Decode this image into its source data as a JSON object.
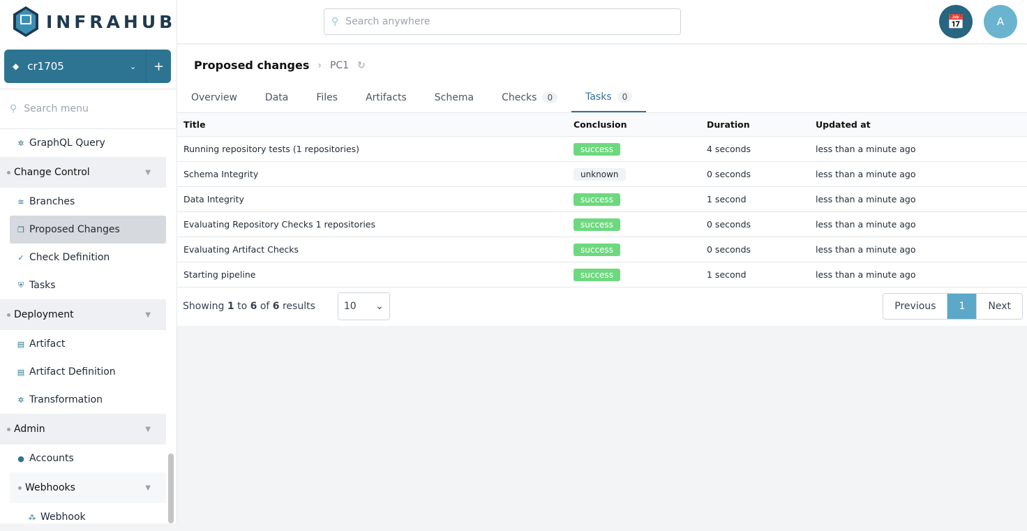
{
  "app": {
    "logo": "INFRAHUB"
  },
  "branch": {
    "name": "cr1705"
  },
  "sidebar": {
    "search_placeholder": "Search menu",
    "items": [
      {
        "type": "item",
        "label": "GraphQL Query",
        "icon": "gear-icon"
      },
      {
        "type": "section",
        "label": "Change Control"
      },
      {
        "type": "item",
        "label": "Branches",
        "icon": "layers-icon"
      },
      {
        "type": "item",
        "label": "Proposed Changes",
        "icon": "copy-icon",
        "active": true
      },
      {
        "type": "item",
        "label": "Check Definition",
        "icon": "check-double-icon"
      },
      {
        "type": "item",
        "label": "Tasks",
        "icon": "shield-check-icon"
      },
      {
        "type": "section",
        "label": "Deployment"
      },
      {
        "type": "item",
        "label": "Artifact",
        "icon": "file-icon"
      },
      {
        "type": "item",
        "label": "Artifact Definition",
        "icon": "file-stack-icon"
      },
      {
        "type": "item",
        "label": "Transformation",
        "icon": "cog-icon"
      },
      {
        "type": "section",
        "label": "Admin"
      },
      {
        "type": "item",
        "label": "Accounts",
        "icon": "user-icon"
      },
      {
        "type": "subsection",
        "label": "Webhooks"
      },
      {
        "type": "subitem",
        "label": "Webhook",
        "icon": "webhook-icon"
      }
    ]
  },
  "header": {
    "search_placeholder": "Search anywhere",
    "avatar": "A"
  },
  "breadcrumb": {
    "title": "Proposed changes",
    "current": "PC1"
  },
  "tabs": [
    {
      "label": "Overview"
    },
    {
      "label": "Data"
    },
    {
      "label": "Files"
    },
    {
      "label": "Artifacts"
    },
    {
      "label": "Schema"
    },
    {
      "label": "Checks",
      "count": "0"
    },
    {
      "label": "Tasks",
      "count": "0",
      "active": true
    }
  ],
  "table": {
    "columns": [
      "Title",
      "Conclusion",
      "Duration",
      "Updated at"
    ],
    "rows": [
      [
        "Running repository tests (1 repositories)",
        "success",
        "4 seconds",
        "less than a minute ago"
      ],
      [
        "Schema Integrity",
        "unknown",
        "0 seconds",
        "less than a minute ago"
      ],
      [
        "Data Integrity",
        "success",
        "1 second",
        "less than a minute ago"
      ],
      [
        "Evaluating Repository Checks 1 repositories",
        "success",
        "0 seconds",
        "less than a minute ago"
      ],
      [
        "Evaluating Artifact Checks",
        "success",
        "0 seconds",
        "less than a minute ago"
      ],
      [
        "Starting pipeline",
        "success",
        "1 second",
        "less than a minute ago"
      ]
    ]
  },
  "pagination": {
    "showing": "Showing",
    "from": "1",
    "to_word": "to",
    "to": "6",
    "of_word": "of",
    "total": "6",
    "results": "results",
    "page_size": "10",
    "previous": "Previous",
    "page": "1",
    "next": "Next"
  },
  "colors": {
    "accent": "#2d7493",
    "success": "#6ed87f"
  }
}
